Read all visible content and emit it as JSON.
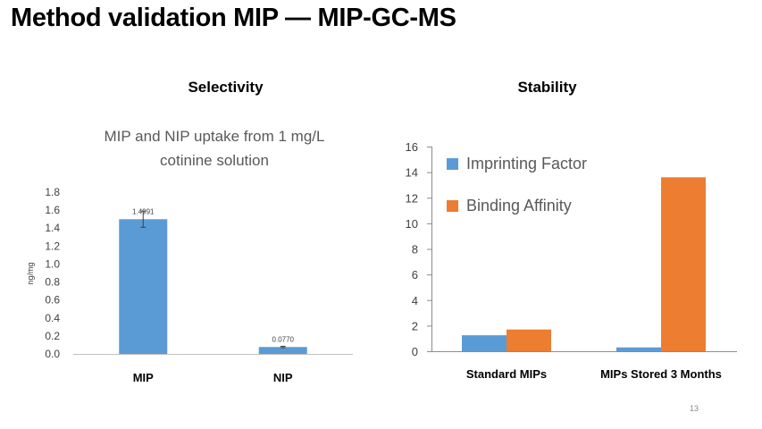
{
  "slide": {
    "title": "Method validation MIP — MIP-GC-MS",
    "page_number": "13"
  },
  "sections": {
    "selectivity": "Selectivity",
    "stability": "Stability"
  },
  "colors": {
    "blue": "#5b9bd5",
    "orange": "#ed7d31",
    "axis": "#a6a6a6",
    "text": "#595959"
  },
  "chart_data": [
    {
      "type": "bar",
      "title": "MIP and NIP uptake from 1 mg/L cotinine solution",
      "title_lines": [
        "MIP and NIP uptake from 1 mg/L",
        "cotinine solution"
      ],
      "categories": [
        "MIP",
        "NIP"
      ],
      "values": [
        1.4991,
        0.077
      ],
      "data_labels": [
        "1.4991",
        "0.0770"
      ],
      "error": [
        0.09,
        0.008
      ],
      "xlabel": "",
      "ylabel": "ng/mg",
      "ylim": [
        0,
        1.8
      ],
      "yticks": [
        "0.0",
        "0.2",
        "0.4",
        "0.6",
        "0.8",
        "1.0",
        "1.2",
        "1.4",
        "1.6",
        "1.8"
      ],
      "grid": false,
      "legend": "none"
    },
    {
      "type": "bar",
      "title": "",
      "categories": [
        "Standard MIPs",
        "MIPs Stored 3 Months"
      ],
      "series": [
        {
          "name": "Imprinting Factor",
          "values": [
            1.25,
            0.3
          ]
        },
        {
          "name": "Binding Affinity",
          "values": [
            1.7,
            13.6
          ]
        }
      ],
      "xlabel": "",
      "ylabel": "",
      "ylim": [
        0,
        16
      ],
      "yticks": [
        "0",
        "2",
        "4",
        "6",
        "8",
        "10",
        "12",
        "14",
        "16"
      ],
      "grid": false,
      "legend": "top-left"
    }
  ]
}
